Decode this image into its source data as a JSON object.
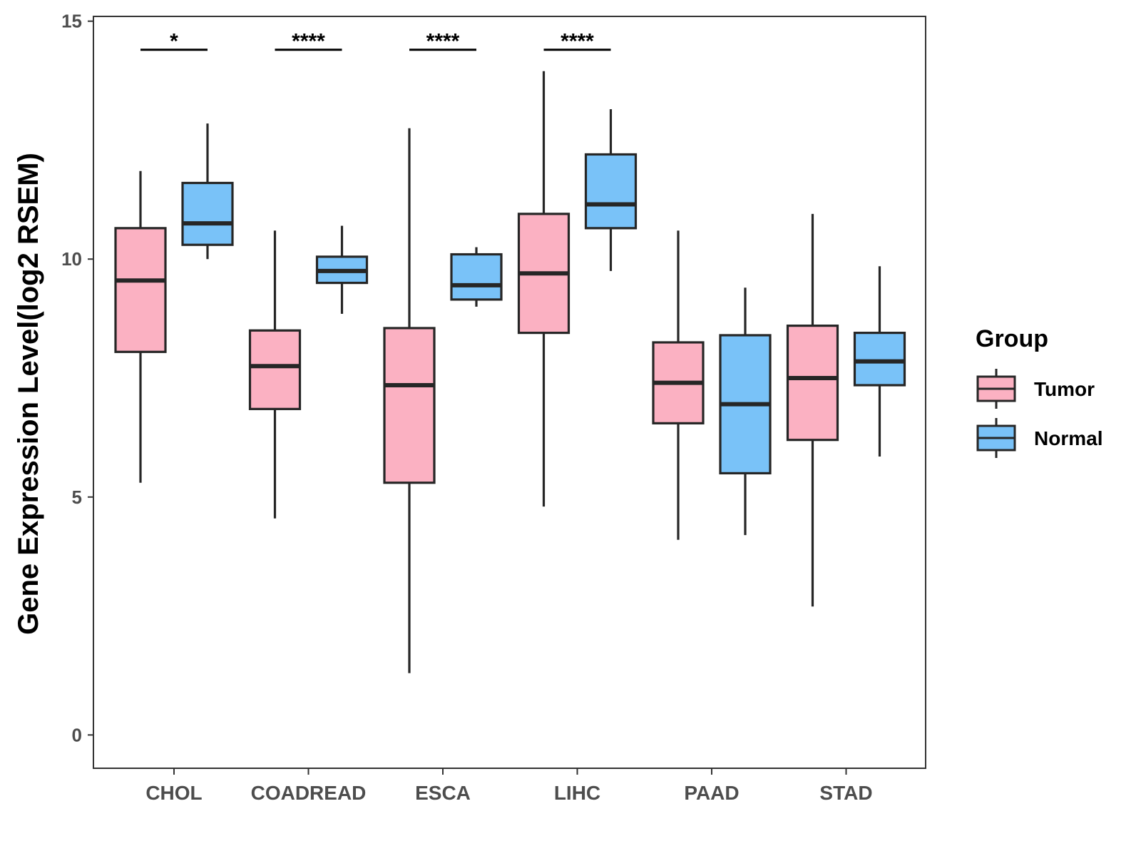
{
  "chart_data": {
    "type": "boxplot",
    "ylabel": "Gene Expression Level(log2 RSEM)",
    "xlabel": "",
    "ylim": [
      -0.7,
      15.1
    ],
    "yticks": [
      0,
      5,
      10,
      15
    ],
    "categories": [
      "CHOL",
      "COADREAD",
      "ESCA",
      "LIHC",
      "PAAD",
      "STAD"
    ],
    "series": [
      {
        "name": "Tumor",
        "color": "#FBB1C2",
        "boxes": [
          {
            "min": 5.3,
            "q1": 8.05,
            "median": 9.55,
            "q3": 10.65,
            "max": 11.85
          },
          {
            "min": 4.55,
            "q1": 6.85,
            "median": 7.75,
            "q3": 8.5,
            "max": 10.6
          },
          {
            "min": 1.3,
            "q1": 5.3,
            "median": 7.35,
            "q3": 8.55,
            "max": 12.75
          },
          {
            "min": 4.8,
            "q1": 8.45,
            "median": 9.7,
            "q3": 10.95,
            "max": 13.95
          },
          {
            "min": 4.1,
            "q1": 6.55,
            "median": 7.4,
            "q3": 8.25,
            "max": 10.6
          },
          {
            "min": 2.7,
            "q1": 6.2,
            "median": 7.5,
            "q3": 8.6,
            "max": 10.95
          }
        ]
      },
      {
        "name": "Normal",
        "color": "#79C2F8",
        "boxes": [
          {
            "min": 10.0,
            "q1": 10.3,
            "median": 10.75,
            "q3": 11.6,
            "max": 12.85
          },
          {
            "min": 8.85,
            "q1": 9.5,
            "median": 9.75,
            "q3": 10.05,
            "max": 10.7
          },
          {
            "min": 9.0,
            "q1": 9.15,
            "median": 9.45,
            "q3": 10.1,
            "max": 10.25
          },
          {
            "min": 9.75,
            "q1": 10.65,
            "median": 11.15,
            "q3": 12.2,
            "max": 13.15
          },
          {
            "min": 4.2,
            "q1": 5.5,
            "median": 6.95,
            "q3": 8.4,
            "max": 9.4
          },
          {
            "min": 5.85,
            "q1": 7.35,
            "median": 7.85,
            "q3": 8.45,
            "max": 9.85
          }
        ]
      }
    ],
    "significance": [
      {
        "category": "CHOL",
        "label": "*",
        "y": 14.4
      },
      {
        "category": "COADREAD",
        "label": "****",
        "y": 14.4
      },
      {
        "category": "ESCA",
        "label": "****",
        "y": 14.4
      },
      {
        "category": "LIHC",
        "label": "****",
        "y": 14.4
      }
    ],
    "legend": {
      "title": "Group",
      "position": "right",
      "entries": [
        "Tumor",
        "Normal"
      ]
    }
  },
  "colors": {
    "tumor": "#FBB1C2",
    "normal": "#79C2F8",
    "stroke": "#262626",
    "axis": "#333333"
  }
}
